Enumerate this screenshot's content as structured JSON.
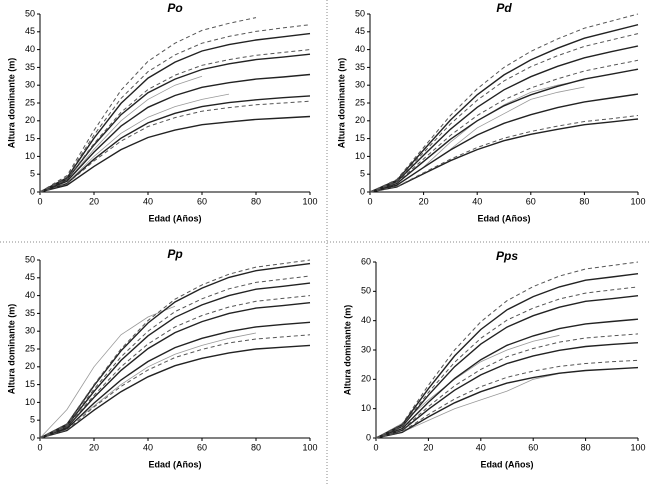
{
  "chart_data": [
    {
      "type": "line",
      "title": "Po",
      "xlabel": "Edad (Años)",
      "ylabel": "Altura dominante (m)",
      "x": [
        0,
        10,
        20,
        30,
        40,
        50,
        60,
        70,
        80,
        90,
        100
      ],
      "xlim": [
        0,
        100
      ],
      "xticks": [
        0,
        20,
        40,
        60,
        80,
        100
      ],
      "ylim": [
        0,
        50
      ],
      "yticks": [
        0,
        5,
        10,
        15,
        20,
        25,
        30,
        35,
        40,
        45,
        50
      ],
      "series": [
        {
          "color": "#999999",
          "style": "solid",
          "values": [
            0,
            3,
            12,
            20,
            26,
            30,
            32.5,
            null,
            null,
            null,
            null
          ]
        },
        {
          "color": "#999999",
          "style": "solid",
          "values": [
            null,
            2.5,
            10,
            16.5,
            21,
            24,
            26,
            27.5,
            null,
            null,
            null
          ]
        },
        {
          "color": "#222222",
          "style": "solid",
          "values": [
            0,
            4,
            15.1,
            24.9,
            32,
            36.5,
            39.6,
            41.4,
            42.7,
            43.6,
            44.5
          ]
        },
        {
          "color": "#222222",
          "style": "solid",
          "values": [
            0,
            3.5,
            13.2,
            21.7,
            27.9,
            31.7,
            34.4,
            36,
            37.2,
            37.9,
            38.7
          ]
        },
        {
          "color": "#222222",
          "style": "solid",
          "values": [
            0,
            3,
            11.2,
            18.5,
            23.8,
            27.1,
            29.4,
            30.7,
            31.7,
            32.3,
            33
          ]
        },
        {
          "color": "#222222",
          "style": "solid",
          "values": [
            0,
            2.4,
            9.2,
            15.1,
            19.4,
            22.1,
            24,
            25.1,
            25.9,
            26.5,
            27
          ]
        },
        {
          "color": "#222222",
          "style": "solid",
          "values": [
            0,
            1.9,
            7.2,
            11.9,
            15.3,
            17.4,
            18.9,
            19.7,
            20.4,
            20.8,
            21.2
          ]
        },
        {
          "color": "#555555",
          "style": "dashed",
          "values": [
            0,
            4.6,
            17.3,
            28.6,
            36.7,
            41.8,
            45.4,
            47.4,
            49,
            null,
            null
          ]
        },
        {
          "color": "#555555",
          "style": "dashed",
          "values": [
            0,
            4.2,
            16,
            26.3,
            33.8,
            38.5,
            41.8,
            43.7,
            45.1,
            46.1,
            47
          ]
        },
        {
          "color": "#555555",
          "style": "dashed",
          "values": [
            0,
            3.6,
            13.6,
            22.4,
            28.8,
            32.8,
            35.6,
            37.2,
            38.4,
            39.2,
            40
          ]
        },
        {
          "color": "#555555",
          "style": "dashed",
          "values": [
            0,
            2.3,
            8.7,
            14.3,
            18.4,
            20.9,
            22.7,
            23.7,
            24.5,
            25,
            25.5
          ]
        }
      ]
    },
    {
      "type": "line",
      "title": "Pd",
      "xlabel": "Edad (Años)",
      "ylabel": "Altura dominante (m)",
      "x": [
        0,
        10,
        20,
        30,
        40,
        50,
        60,
        70,
        80,
        90,
        100
      ],
      "xlim": [
        0,
        100
      ],
      "xticks": [
        0,
        20,
        40,
        60,
        80,
        100
      ],
      "ylim": [
        0,
        50
      ],
      "yticks": [
        0,
        5,
        10,
        15,
        20,
        25,
        30,
        35,
        40,
        45,
        50
      ],
      "series": [
        {
          "color": "#999999",
          "style": "solid",
          "values": [
            null,
            null,
            7,
            14,
            20,
            24.5,
            28,
            30,
            31.5,
            null,
            null
          ]
        },
        {
          "color": "#999999",
          "style": "solid",
          "values": [
            null,
            null,
            null,
            12,
            18,
            22,
            26,
            28,
            29.5,
            null,
            null
          ]
        },
        {
          "color": "#222222",
          "style": "solid",
          "values": [
            0,
            3.3,
            11.8,
            20.2,
            27.3,
            32.9,
            37.1,
            40.4,
            43.2,
            45.1,
            47
          ]
        },
        {
          "color": "#222222",
          "style": "solid",
          "values": [
            0,
            2.9,
            10.3,
            17.6,
            23.8,
            28.7,
            32.4,
            35.3,
            37.7,
            39.4,
            41
          ]
        },
        {
          "color": "#222222",
          "style": "solid",
          "values": [
            0,
            2.4,
            8.6,
            14.8,
            20,
            24.2,
            27.3,
            29.7,
            31.7,
            33.1,
            34.5
          ]
        },
        {
          "color": "#222222",
          "style": "solid",
          "values": [
            0,
            1.9,
            6.9,
            11.8,
            16,
            19.3,
            21.7,
            23.7,
            25.3,
            26.4,
            27.5
          ]
        },
        {
          "color": "#222222",
          "style": "solid",
          "values": [
            0,
            1.4,
            5.1,
            8.8,
            11.9,
            14.4,
            16.2,
            17.6,
            18.9,
            19.7,
            20.5
          ]
        },
        {
          "color": "#555555",
          "style": "dashed",
          "values": [
            0,
            3.5,
            12.5,
            21.5,
            29,
            35,
            39.5,
            43,
            46,
            48,
            50
          ]
        },
        {
          "color": "#555555",
          "style": "dashed",
          "values": [
            0,
            3.1,
            11.1,
            19.1,
            25.8,
            31.2,
            35.2,
            38.3,
            40.9,
            42.7,
            44.5
          ]
        },
        {
          "color": "#555555",
          "style": "dashed",
          "values": [
            0,
            2.6,
            9.3,
            15.9,
            21.5,
            25.9,
            29.2,
            31.8,
            34,
            35.5,
            37
          ]
        },
        {
          "color": "#555555",
          "style": "dashed",
          "values": [
            0,
            1.5,
            5.4,
            9.2,
            12.5,
            15.1,
            17,
            18.5,
            19.8,
            20.6,
            21.5
          ]
        }
      ]
    },
    {
      "type": "line",
      "title": "Pp",
      "xlabel": "Edad (Años)",
      "ylabel": "Altura dominante (m)",
      "x": [
        0,
        10,
        20,
        30,
        40,
        50,
        60,
        70,
        80,
        90,
        100
      ],
      "xlim": [
        0,
        100
      ],
      "xticks": [
        0,
        20,
        40,
        60,
        80,
        100
      ],
      "ylim": [
        0,
        50
      ],
      "yticks": [
        0,
        5,
        10,
        15,
        20,
        25,
        30,
        35,
        40,
        45,
        50
      ],
      "series": [
        {
          "color": "#999999",
          "style": "solid",
          "values": [
            0,
            8,
            20,
            29,
            34,
            37,
            null,
            null,
            null,
            null,
            null
          ]
        },
        {
          "color": "#999999",
          "style": "solid",
          "values": [
            null,
            3,
            9,
            15,
            20,
            23.5,
            26,
            28,
            29.5,
            null,
            null
          ]
        },
        {
          "color": "#222222",
          "style": "solid",
          "values": [
            0,
            3.9,
            14.7,
            24.5,
            32.3,
            38.2,
            42.1,
            45.1,
            47,
            48,
            49
          ]
        },
        {
          "color": "#222222",
          "style": "solid",
          "values": [
            0,
            3.5,
            13.1,
            21.8,
            28.7,
            33.9,
            37.4,
            40,
            41.8,
            42.6,
            43.5
          ]
        },
        {
          "color": "#222222",
          "style": "solid",
          "values": [
            0,
            3,
            11.4,
            19,
            25.1,
            29.6,
            32.7,
            35,
            36.5,
            37.2,
            38
          ]
        },
        {
          "color": "#222222",
          "style": "solid",
          "values": [
            0,
            2.6,
            9.8,
            16.3,
            21.5,
            25.4,
            28,
            29.9,
            31.2,
            31.9,
            32.5
          ]
        },
        {
          "color": "#222222",
          "style": "solid",
          "values": [
            0,
            2.1,
            7.8,
            13,
            17.2,
            20.3,
            22.4,
            23.9,
            25,
            25.5,
            26
          ]
        },
        {
          "color": "#555555",
          "style": "dashed",
          "values": [
            0,
            4,
            15,
            25,
            33,
            39,
            43,
            46,
            48,
            49,
            50
          ]
        },
        {
          "color": "#555555",
          "style": "dashed",
          "values": [
            0,
            3.6,
            13.7,
            22.8,
            30,
            35.5,
            39.1,
            41.9,
            43.7,
            44.6,
            45.5
          ]
        },
        {
          "color": "#555555",
          "style": "dashed",
          "values": [
            0,
            3.2,
            12,
            20,
            26.4,
            31.2,
            34.4,
            36.8,
            38.4,
            39.2,
            40
          ]
        },
        {
          "color": "#555555",
          "style": "dashed",
          "values": [
            0,
            2.3,
            8.7,
            14.5,
            19.1,
            22.6,
            24.9,
            26.7,
            27.8,
            28.4,
            29
          ]
        }
      ]
    },
    {
      "type": "line",
      "title": "Pps",
      "xlabel": "Edad (Años)",
      "ylabel": "Altura dominante (m)",
      "x": [
        0,
        10,
        20,
        30,
        40,
        50,
        60,
        70,
        80,
        90,
        100
      ],
      "xlim": [
        0,
        100
      ],
      "xticks": [
        0,
        20,
        40,
        60,
        80,
        100
      ],
      "ylim": [
        0,
        60
      ],
      "yticks": [
        0,
        10,
        20,
        30,
        40,
        50,
        60
      ],
      "series": [
        {
          "color": "#999999",
          "style": "solid",
          "values": [
            0,
            5,
            13,
            20,
            26,
            30,
            33,
            35,
            null,
            null,
            null
          ]
        },
        {
          "color": "#999999",
          "style": "solid",
          "values": [
            null,
            2,
            6,
            10,
            13,
            16,
            20,
            22,
            23,
            null,
            null
          ]
        },
        {
          "color": "#222222",
          "style": "solid",
          "values": [
            0,
            4.5,
            16.8,
            28,
            37,
            43.7,
            48.2,
            51.5,
            53.8,
            54.9,
            56
          ]
        },
        {
          "color": "#222222",
          "style": "solid",
          "values": [
            0,
            3.9,
            14.6,
            24.3,
            32,
            37.8,
            41.7,
            44.6,
            46.6,
            47.5,
            48.5
          ]
        },
        {
          "color": "#222222",
          "style": "solid",
          "values": [
            0,
            3.2,
            12.2,
            20.3,
            26.7,
            31.6,
            34.8,
            37.3,
            38.9,
            39.7,
            40.5
          ]
        },
        {
          "color": "#222222",
          "style": "solid",
          "values": [
            0,
            2.6,
            9.8,
            16.3,
            21.5,
            25.4,
            28,
            29.9,
            31.2,
            31.9,
            32.5
          ]
        },
        {
          "color": "#222222",
          "style": "solid",
          "values": [
            0,
            1.9,
            7.2,
            12,
            15.8,
            18.7,
            20.6,
            22.1,
            23,
            23.5,
            24
          ]
        },
        {
          "color": "#555555",
          "style": "dashed",
          "values": [
            0,
            4.8,
            18,
            30,
            39.6,
            46.8,
            51.6,
            55.2,
            57.6,
            58.8,
            60
          ]
        },
        {
          "color": "#555555",
          "style": "dashed",
          "values": [
            0,
            4.1,
            15.5,
            25.8,
            34,
            40.2,
            44.3,
            47.4,
            49.4,
            50.5,
            51.5
          ]
        },
        {
          "color": "#555555",
          "style": "dashed",
          "values": [
            0,
            2.8,
            10.7,
            17.8,
            23.4,
            27.7,
            30.5,
            32.7,
            34.1,
            34.8,
            35.5
          ]
        },
        {
          "color": "#555555",
          "style": "dashed",
          "values": [
            0,
            2.1,
            8,
            13.3,
            17.5,
            20.7,
            22.8,
            24.4,
            25.4,
            26,
            26.5
          ]
        }
      ]
    }
  ]
}
